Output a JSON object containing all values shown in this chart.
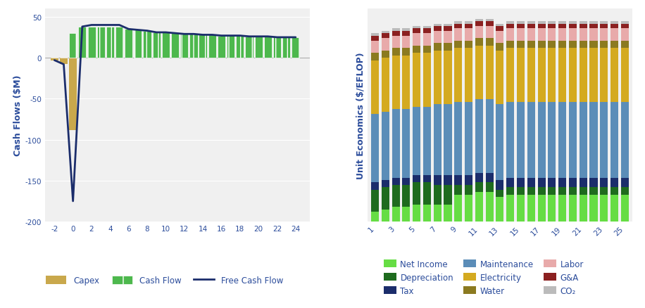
{
  "left_ylabel": "Cash Flows ($M)",
  "right_ylabel": "Unit Economics ($/EFLOP)",
  "left_years": [
    -2,
    -1,
    0,
    1,
    2,
    3,
    4,
    5,
    6,
    7,
    8,
    9,
    10,
    11,
    12,
    13,
    14,
    15,
    16,
    17,
    18,
    19,
    20,
    21,
    22,
    23,
    24
  ],
  "capex": [
    -3,
    -8,
    -88,
    0,
    0,
    0,
    0,
    0,
    0,
    0,
    0,
    0,
    0,
    0,
    0,
    0,
    0,
    0,
    0,
    0,
    0,
    0,
    0,
    0,
    0,
    0,
    0
  ],
  "cash_flow": [
    0,
    0,
    30,
    38,
    38,
    38,
    38,
    38,
    35,
    34,
    33,
    31,
    31,
    30,
    29,
    29,
    28,
    28,
    27,
    27,
    27,
    26,
    26,
    26,
    25,
    25,
    25
  ],
  "free_cash_flow": [
    -3,
    -8,
    -175,
    38,
    40,
    40,
    40,
    40,
    35,
    34,
    33,
    31,
    31,
    30,
    29,
    29,
    28,
    28,
    27,
    27,
    27,
    26,
    26,
    26,
    25,
    25,
    25
  ],
  "left_ylim": [
    -200,
    60
  ],
  "left_yticks": [
    -200,
    -150,
    -100,
    -50,
    0,
    50
  ],
  "capex_color": "#C9A84C",
  "cash_flow_color": "#4DB84D",
  "free_cash_flow_color": "#1B2D6B",
  "right_years": [
    1,
    2,
    3,
    4,
    5,
    6,
    7,
    8,
    9,
    10,
    11,
    12,
    13,
    14,
    15,
    16,
    17,
    18,
    19,
    20,
    21,
    22,
    23,
    24,
    25
  ],
  "net_income": [
    0.04,
    0.05,
    0.06,
    0.06,
    0.07,
    0.07,
    0.07,
    0.07,
    0.11,
    0.11,
    0.12,
    0.12,
    0.1,
    0.11,
    0.11,
    0.11,
    0.11,
    0.11,
    0.11,
    0.11,
    0.11,
    0.11,
    0.11,
    0.11,
    0.11
  ],
  "depreciation": [
    0.09,
    0.09,
    0.09,
    0.09,
    0.09,
    0.09,
    0.08,
    0.08,
    0.04,
    0.04,
    0.04,
    0.04,
    0.03,
    0.03,
    0.03,
    0.03,
    0.03,
    0.03,
    0.03,
    0.03,
    0.03,
    0.03,
    0.03,
    0.03,
    0.03
  ],
  "tax": [
    0.03,
    0.03,
    0.03,
    0.03,
    0.03,
    0.03,
    0.04,
    0.04,
    0.04,
    0.04,
    0.04,
    0.04,
    0.04,
    0.04,
    0.04,
    0.04,
    0.04,
    0.04,
    0.04,
    0.04,
    0.04,
    0.04,
    0.04,
    0.04,
    0.04
  ],
  "maintenance": [
    0.28,
    0.28,
    0.28,
    0.28,
    0.28,
    0.28,
    0.29,
    0.29,
    0.3,
    0.3,
    0.3,
    0.3,
    0.31,
    0.31,
    0.31,
    0.31,
    0.31,
    0.31,
    0.31,
    0.31,
    0.31,
    0.31,
    0.31,
    0.31,
    0.31
  ],
  "electricity": [
    0.22,
    0.22,
    0.22,
    0.22,
    0.22,
    0.22,
    0.22,
    0.22,
    0.22,
    0.22,
    0.22,
    0.22,
    0.22,
    0.22,
    0.22,
    0.22,
    0.22,
    0.22,
    0.22,
    0.22,
    0.22,
    0.22,
    0.22,
    0.22,
    0.22
  ],
  "water": [
    0.03,
    0.03,
    0.03,
    0.03,
    0.03,
    0.03,
    0.03,
    0.03,
    0.03,
    0.03,
    0.03,
    0.03,
    0.03,
    0.03,
    0.03,
    0.03,
    0.03,
    0.03,
    0.03,
    0.03,
    0.03,
    0.03,
    0.03,
    0.03,
    0.03
  ],
  "labor": [
    0.05,
    0.05,
    0.05,
    0.05,
    0.05,
    0.05,
    0.05,
    0.05,
    0.05,
    0.05,
    0.05,
    0.05,
    0.05,
    0.05,
    0.05,
    0.05,
    0.05,
    0.05,
    0.05,
    0.05,
    0.05,
    0.05,
    0.05,
    0.05,
    0.05
  ],
  "ga": [
    0.02,
    0.02,
    0.02,
    0.02,
    0.02,
    0.02,
    0.02,
    0.02,
    0.02,
    0.02,
    0.02,
    0.02,
    0.02,
    0.02,
    0.02,
    0.02,
    0.02,
    0.02,
    0.02,
    0.02,
    0.02,
    0.02,
    0.02,
    0.02,
    0.02
  ],
  "co2": [
    0.01,
    0.01,
    0.01,
    0.01,
    0.01,
    0.01,
    0.01,
    0.01,
    0.01,
    0.01,
    0.01,
    0.01,
    0.01,
    0.01,
    0.01,
    0.01,
    0.01,
    0.01,
    0.01,
    0.01,
    0.01,
    0.01,
    0.01,
    0.01,
    0.01
  ],
  "net_income_color": "#66DD44",
  "depreciation_color": "#1E6B1E",
  "tax_color": "#1B2D6B",
  "maintenance_color": "#5B8DB8",
  "electricity_color": "#D4AA20",
  "water_color": "#8B7A20",
  "labor_color": "#E8AAAA",
  "ga_color": "#8B2020",
  "co2_color": "#BBBBBB",
  "text_color": "#2B4C9B",
  "bg_color": "#F0F0F0"
}
